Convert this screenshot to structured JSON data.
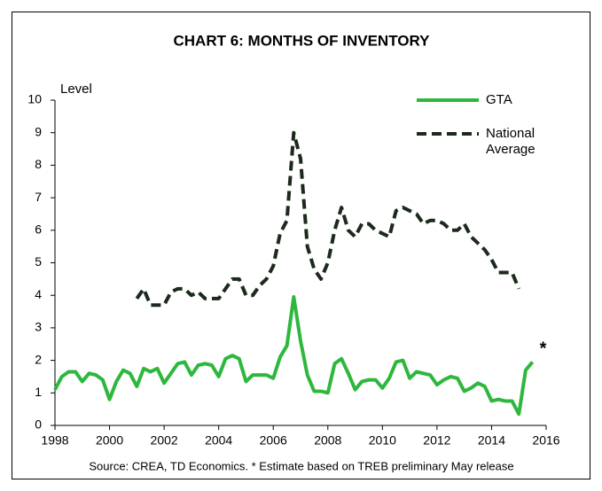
{
  "chart_data": {
    "type": "line",
    "title": "CHART 6: MONTHS OF INVENTORY",
    "y_label": "Level",
    "source": "Source: CREA, TD Economics. * Estimate based on TREB preliminary May release",
    "annotation": "*",
    "legend": "upper right",
    "grid": false,
    "xlim": [
      1998,
      2016
    ],
    "xticks": [
      1998,
      2000,
      2002,
      2004,
      2006,
      2008,
      2010,
      2012,
      2014,
      2016
    ],
    "ylim": [
      0,
      10
    ],
    "yticks": [
      0,
      1,
      2,
      3,
      4,
      5,
      6,
      7,
      8,
      9,
      10
    ],
    "x": [
      1998,
      1998.25,
      1998.5,
      1998.75,
      1999,
      1999.25,
      1999.5,
      1999.75,
      2000,
      2000.25,
      2000.5,
      2000.75,
      2001,
      2001.25,
      2001.5,
      2001.75,
      2002,
      2002.25,
      2002.5,
      2002.75,
      2003,
      2003.25,
      2003.5,
      2003.75,
      2004,
      2004.25,
      2004.5,
      2004.75,
      2005,
      2005.25,
      2005.5,
      2005.75,
      2006,
      2006.25,
      2006.5,
      2006.75,
      2007,
      2007.25,
      2007.5,
      2007.75,
      2008,
      2008.25,
      2008.5,
      2008.75,
      2009,
      2009.25,
      2009.5,
      2009.75,
      2010,
      2010.25,
      2010.5,
      2010.75,
      2011,
      2011.25,
      2011.5,
      2011.75,
      2012,
      2012.25,
      2012.5,
      2012.75,
      2013,
      2013.25,
      2013.5,
      2013.75,
      2014,
      2014.25,
      2014.5,
      2014.75,
      2015,
      2015.25,
      2015.5
    ],
    "series": [
      {
        "name": "GTA",
        "color": "#2db83d",
        "dashed": false,
        "values": [
          1.1,
          1.5,
          1.65,
          1.65,
          1.35,
          1.6,
          1.55,
          1.4,
          0.8,
          1.35,
          1.7,
          1.6,
          1.2,
          1.75,
          1.65,
          1.75,
          1.3,
          1.6,
          1.9,
          1.95,
          1.55,
          1.85,
          1.9,
          1.85,
          1.5,
          2.05,
          2.15,
          2.05,
          1.35,
          1.55,
          1.55,
          1.55,
          1.45,
          2.1,
          2.45,
          3.95,
          2.6,
          1.55,
          1.05,
          1.05,
          1.0,
          1.9,
          2.05,
          1.6,
          1.1,
          1.35,
          1.4,
          1.4,
          1.15,
          1.45,
          1.95,
          2.0,
          1.45,
          1.65,
          1.6,
          1.55,
          1.25,
          1.4,
          1.5,
          1.45,
          1.05,
          1.15,
          1.3,
          1.2,
          0.75,
          0.8,
          0.75,
          0.75,
          0.35,
          1.7,
          1.95
        ]
      },
      {
        "name": "National Average",
        "color": "#1c2a1c",
        "dashed": true,
        "values": [
          null,
          null,
          null,
          null,
          null,
          null,
          null,
          null,
          null,
          null,
          null,
          null,
          3.9,
          4.2,
          3.7,
          3.7,
          3.7,
          4.1,
          4.2,
          4.2,
          4.0,
          4.1,
          3.9,
          3.9,
          3.9,
          4.2,
          4.5,
          4.5,
          4.0,
          4.0,
          4.3,
          4.5,
          4.9,
          5.9,
          6.3,
          9.0,
          8.2,
          5.5,
          4.8,
          4.5,
          5.0,
          6.0,
          6.7,
          6.0,
          5.8,
          6.2,
          6.2,
          6.0,
          5.9,
          5.8,
          6.6,
          6.7,
          6.6,
          6.5,
          6.2,
          6.3,
          6.3,
          6.2,
          6.0,
          6.0,
          6.2,
          5.8,
          5.6,
          5.4,
          5.1,
          4.7,
          4.7,
          4.7,
          4.2,
          null,
          null
        ]
      }
    ]
  }
}
